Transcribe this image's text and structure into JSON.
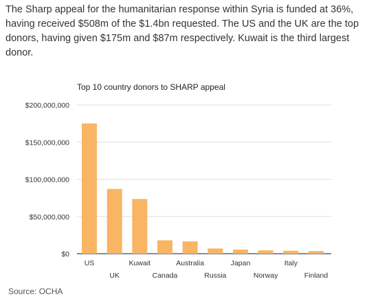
{
  "intro_text": "The Sharp appeal for the humanitarian response within Syria is funded at 36%, having received $508m of the $1.4bn requested. The US and the UK are the top donors, having given $175m and $87m respectively. Kuwait is the third largest donor.",
  "source": "Source: OCHA",
  "chart_data": {
    "type": "bar",
    "title": "Top 10 country donors to SHARP appeal",
    "xlabel": "",
    "ylabel": "",
    "categories": [
      "US",
      "UK",
      "Kuwait",
      "Canada",
      "Australia",
      "Russia",
      "Japan",
      "Norway",
      "Italy",
      "Finland"
    ],
    "values": [
      175000000,
      87000000,
      73500000,
      18000000,
      16500000,
      7000000,
      5500000,
      4500000,
      4000000,
      3500000
    ],
    "ylim": [
      0,
      200000000
    ],
    "yticks": [
      0,
      50000000,
      100000000,
      150000000,
      200000000
    ],
    "ytick_labels": [
      "$0",
      "$50,000,000",
      "$100,000,000",
      "$150,000,000",
      "$200,000,000"
    ],
    "bar_color": "#f9b464",
    "grid": true,
    "legend": false
  }
}
